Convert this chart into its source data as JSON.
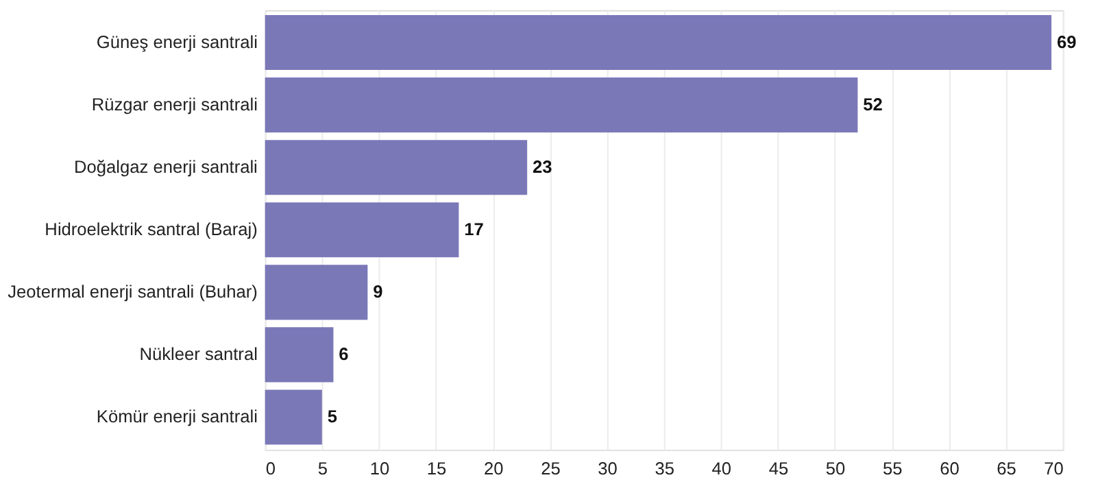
{
  "chart_data": {
    "type": "bar",
    "orientation": "horizontal",
    "categories": [
      "Güneş enerji santrali",
      "Rüzgar enerji santrali",
      "Doğalgaz enerji santrali",
      "Hidroelektrik santral (Baraj)",
      "Jeotermal enerji santrali (Buhar)",
      "Nükleer santral",
      "Kömür enerji santrali"
    ],
    "values": [
      69,
      52,
      23,
      17,
      9,
      6,
      5
    ],
    "color": "#7b78b8",
    "xlim": [
      0,
      70
    ],
    "xticks": [
      0,
      5,
      10,
      15,
      20,
      25,
      30,
      35,
      40,
      45,
      50,
      55,
      60,
      65,
      70
    ],
    "grid": "x",
    "data_labels": true
  }
}
